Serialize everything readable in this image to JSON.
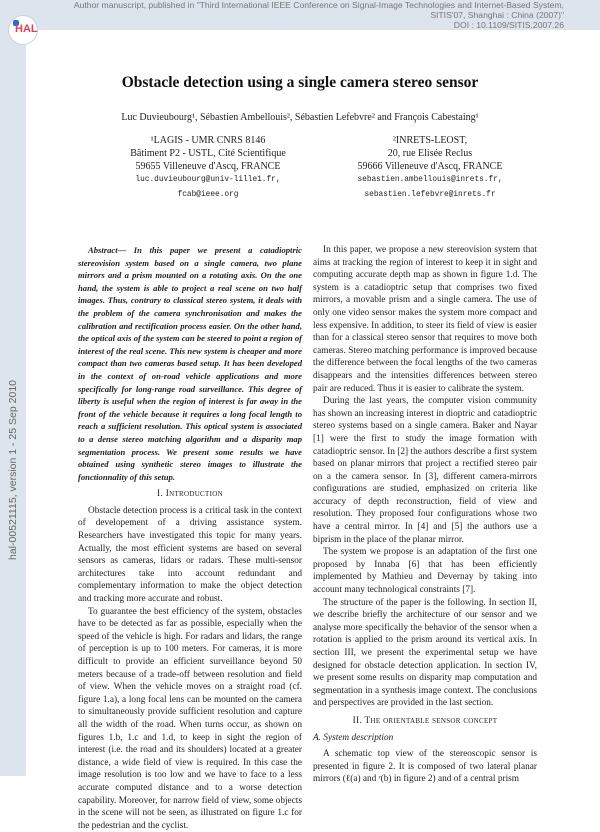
{
  "header": {
    "notice_line1": "Author manuscript, published in \"Third International IEEE Conference on Signal-Image Technologies and Internet-Based System,",
    "notice_line2": "SITIS'07, Shanghai : China (2007)\"",
    "notice_line3": "DOI : 10.1109/SITIS.2007.26",
    "hal_id": "hal-00521115, version 1 - 25 Sep 2010",
    "logo_text": "HAL"
  },
  "paper": {
    "title": "Obstacle detection using a single camera stereo sensor",
    "authors": "Luc Duvieubourg¹, Sébastien Ambellouis², Sébastien Lefebvre² and François Cabestaing¹",
    "affiliations": [
      {
        "line1": "¹LAGIS - UMR CNRS 8146",
        "line2": "Bâtiment P2 - USTL, Cité Scientifique",
        "line3": "59655 Villeneuve d'Ascq, FRANCE",
        "email1": "luc.duvieubourg@univ-lille1.fr,",
        "email2": "fcab@ieee.org"
      },
      {
        "line1": "²INRETS-LEOST,",
        "line2": "20, rue Elisée Reclus",
        "line3": "59666 Villeneuve d'Ascq, FRANCE",
        "email1": "sebastien.ambellouis@inrets.fr,",
        "email2": "sebastien.lefebvre@inrets.fr"
      }
    ],
    "abstract": "Abstract— In this paper we present a catadioptric stereovision system based on a single camera, two plane mirrors and a prism mounted on a rotating axis. On the one hand, the system is able to project a real scene on two half images. Thus, contrary to classical stereo system, it deals with the problem of the camera synchronisation and makes the calibration and rectification process easier. On the other hand, the optical axis of the system can be steered to point a region of interest of the real scene. This new system is cheaper and more compact than two cameras based setup. It has been developed in the context of on-road vehicle applications and more specifically for long-range road surveillance. This degree of liberty is useful when the region of interest is far away in the front of the vehicle because it requires a long focal length to reach a sufficient resolution. This optical system is associated to a dense stereo matching algorithm and a disparity map segmentation process. We present some results we have obtained using synthetic stereo images to illustrate the fonctionnality of this setup.",
    "section1_heading": "I. Introduction",
    "intro_p1": "Obstacle detection process is a critical task in the context of developement of a driving assistance system. Researchers have investigated this topic for many years. Actually, the most efficient systems are based on several sensors as cameras, lidars or radars. These multi-sensor architectures take into account redundant and complementary information to make the object detection and tracking more accurate and robust.",
    "intro_p2": "To guarantee the best efficiency of the system, obstacles have to be detected as far as possible, especially when the speed of the vehicle is high. For radars and lidars, the range of perception is up to 100 meters. For cameras, it is more difficult to provide an efficient surveillance beyond 50 meters because of a trade-off between resolution and field of view. When the vehicle moves on a straight road (cf. figure 1.a), a long focal lens can be mounted on the camera to simultaneously provide sufficient resolution and capture all the width of the road. When turns occur, as shown on figures 1.b, 1.c and 1.d, to keep in sight the region of interest (i.e. the road and its shoulders) located at a greater distance, a wide field of view is required. In this case the image resolution is too low and we have to face to a less accurate computed distance and to a worse detection capability. Moreover, for narrow field of view, some objects in the scene will not be seen, as illustrated on figure 1.c for the pedestrian and the cyclist.",
    "right_p1": "In this paper, we propose a new stereovision system that aims at tracking the region of interest to keep it in sight and computing accurate depth map as shown in figure 1.d. The system is a catadioptric setup that comprises two fixed mirrors, a movable prism and a single camera. The use of only one video sensor makes the system more compact and less expensive. In addition, to steer its field of view is easier than for a classical stereo sensor that requires to move both cameras. Stereo matching performance is improved because the difference between the focal lengths of the two cameras disappears and the intensities differences between stereo pair are reduced. Thus it is easier to calibrate the system.",
    "right_p2": "During the last years, the computer vision community has shown an increasing interest in dioptric and catadioptric stereo systems based on a single camera. Baker and Nayar [1] were the first to study the image formation with catadioptric sensor. In [2] the authors describe a first system based on planar mirrors that project a rectified stereo pair on a the camera sensor. In [3], different camera-mirrors configurations are studied, emphasized on criteria like accuracy of depth reconstruction, field of view and resolution. They proposed four configurations whose two have a central mirror. In [4] and [5] the authors use a biprism in the place of the planar mirror.",
    "right_p3": "The system we propose is an adaptation of the first one proposed by Innaba [6] that has been efficiently implemented by Mathieu and Devernay by taking into account many technological constraints [7].",
    "right_p4": "The structure of the paper is the following. In section II, we describe briefly the architecture of our sensor and we analyse more specifically the behavior of the sensor when a rotation is applied to the prism around its vertical axis. In section III, we present the experimental setup we have designed for obstacle detection application. In section IV, we present some results on disparity map computation and segmentation in a synthesis image context. The conclusions and perspectives are provided in the last section.",
    "section2_heading": "II. The orientable sensor concept",
    "subsection_a": "A. System description",
    "right_p5": "A schematic top view of the stereoscopic sensor is presented in figure 2. It is composed of two lateral planar mirrors (ℓ(a) and ʳ(b) in figure 2) and of a central prism"
  }
}
